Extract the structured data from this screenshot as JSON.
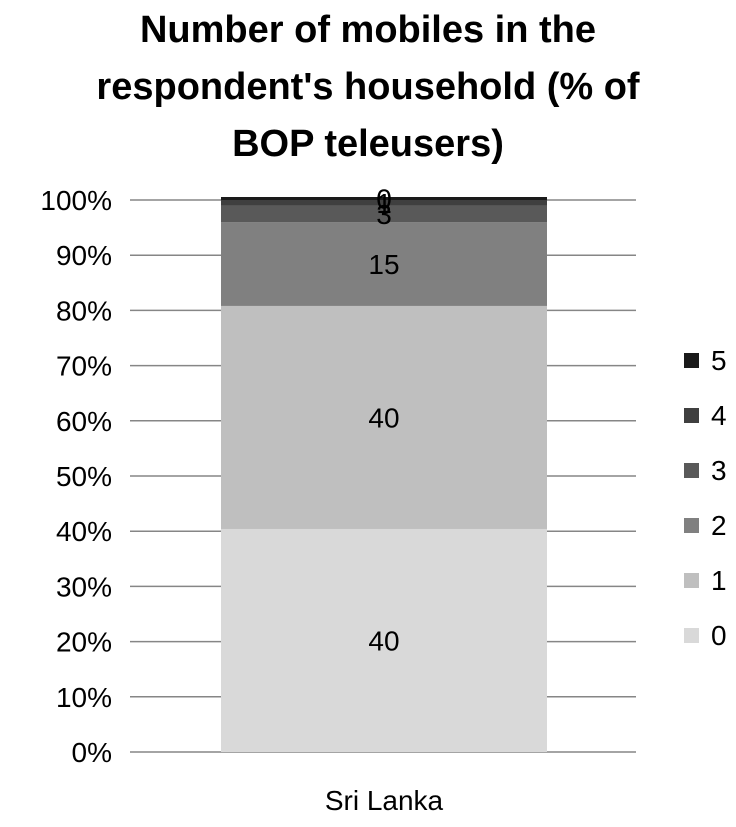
{
  "chart_data": {
    "type": "bar",
    "stacked": true,
    "percent_stacked": true,
    "title_lines": [
      "Number of mobiles in the",
      "respondent's household (% of",
      "BOP teleusers)"
    ],
    "categories": [
      "Sri Lanka"
    ],
    "series": [
      {
        "name": "0",
        "values": [
          40
        ],
        "color": "#d9d9d9"
      },
      {
        "name": "1",
        "values": [
          40
        ],
        "color": "#bfbfbf"
      },
      {
        "name": "2",
        "values": [
          15
        ],
        "color": "#808080"
      },
      {
        "name": "3",
        "values": [
          3
        ],
        "color": "#595959"
      },
      {
        "name": "4",
        "values": [
          1
        ],
        "color": "#3f3f3f"
      },
      {
        "name": "5",
        "values": [
          0
        ],
        "color": "#1a1a1a"
      }
    ],
    "data_labels": [
      "40",
      "40",
      "15",
      "3",
      "1",
      "0"
    ],
    "y_ticks": [
      "0%",
      "10%",
      "20%",
      "30%",
      "40%",
      "50%",
      "60%",
      "70%",
      "80%",
      "90%",
      "100%"
    ],
    "ylim": [
      0,
      100
    ],
    "grid": true,
    "legend_position": "right",
    "gridline_color": "#868686",
    "xlabel": "",
    "ylabel": ""
  }
}
